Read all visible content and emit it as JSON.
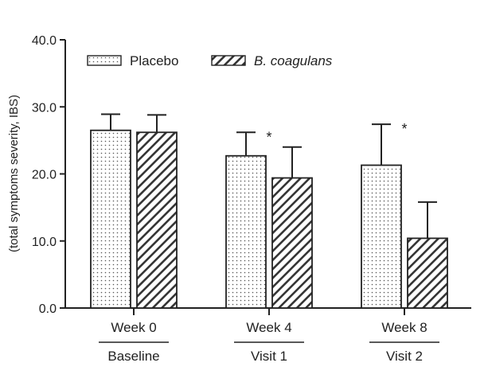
{
  "chart_data": {
    "type": "bar",
    "title": "",
    "xlabel": "",
    "ylabel": "(total symptoms severity, IBS)",
    "ylim": [
      0,
      40
    ],
    "yticks": [
      "0.0",
      "10.0",
      "20.0",
      "30.0",
      "40.0"
    ],
    "categories": [
      "Week 0",
      "Week 4",
      "Week 8"
    ],
    "subcategories": [
      "Baseline",
      "Visit 1",
      "Visit 2"
    ],
    "series": [
      {
        "name": "Placebo",
        "pattern": "dots",
        "values": [
          26.5,
          22.7,
          21.3
        ],
        "errors": [
          2.4,
          3.5,
          6.1
        ]
      },
      {
        "name": "B. coagulans",
        "pattern": "diagonal-hatch",
        "values": [
          26.2,
          19.4,
          10.4
        ],
        "errors": [
          2.6,
          4.6,
          5.4
        ]
      }
    ],
    "significance": [
      "",
      "*",
      "*"
    ],
    "legend_position": "top-left",
    "grid": false,
    "colors": {
      "axis": "#222222",
      "bar_fill": "#ffffff",
      "pattern": "#444444"
    }
  }
}
